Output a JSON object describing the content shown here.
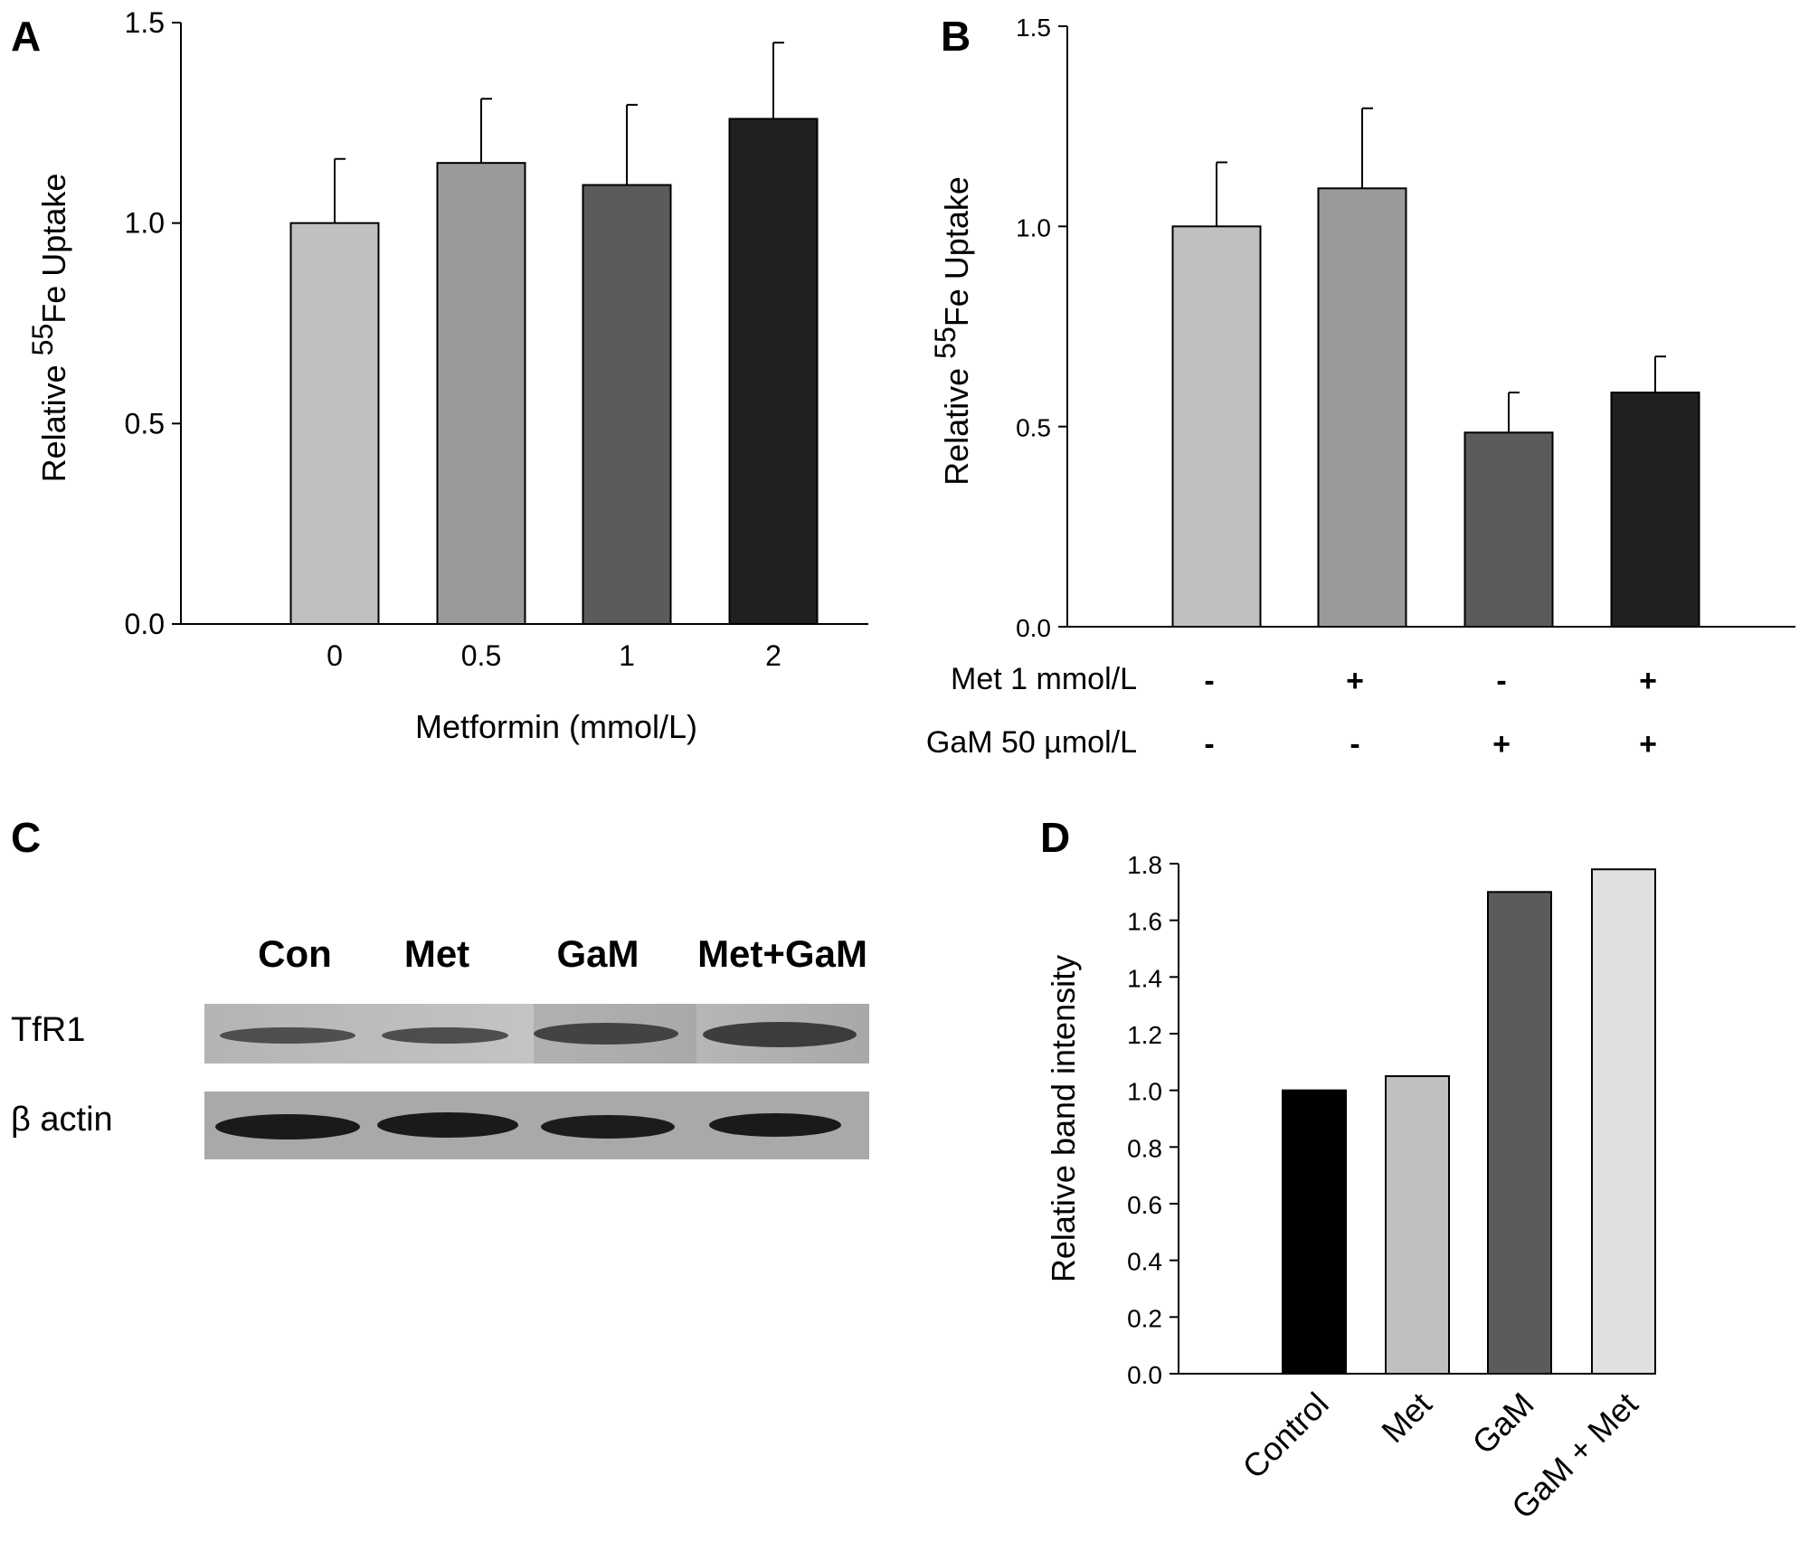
{
  "panels": {
    "A": "A",
    "B": "B",
    "C": "C",
    "D": "D"
  },
  "chart_data": [
    {
      "id": "A",
      "type": "bar",
      "categories": [
        "0",
        "0.5",
        "1",
        "2"
      ],
      "values": [
        1.0,
        1.15,
        1.095,
        1.26
      ],
      "errors": [
        0.16,
        0.16,
        0.2,
        0.19
      ],
      "bar_colors": [
        "#c0c0c0",
        "#9a9a9a",
        "#5b5b5b",
        "#202020"
      ],
      "ylabel_prefix": "Relative ",
      "ylabel_sup": "55",
      "ylabel_suffix": "Fe Uptake",
      "xlabel": "Metformin (mmol/L)",
      "ylim": [
        0,
        1.5
      ],
      "yticks": [
        "0.0",
        "0.5",
        "1.0",
        "1.5"
      ]
    },
    {
      "id": "B",
      "type": "bar",
      "categories": [
        "",
        "",
        "",
        ""
      ],
      "values": [
        1.0,
        1.095,
        0.485,
        0.585
      ],
      "errors": [
        0.16,
        0.2,
        0.1,
        0.09
      ],
      "bar_colors": [
        "#c0c0c0",
        "#9a9a9a",
        "#5b5b5b",
        "#202020"
      ],
      "ylabel_prefix": "Relative ",
      "ylabel_sup": "55",
      "ylabel_suffix": "Fe Uptake",
      "ylim": [
        0,
        1.5
      ],
      "yticks": [
        "0.0",
        "0.5",
        "1.0",
        "1.5"
      ],
      "condition_rows": [
        {
          "label": "Met 1 mmol/L",
          "signs": [
            "-",
            "+",
            "-",
            "+"
          ]
        },
        {
          "label": "GaM 50  µmol/L",
          "signs": [
            "-",
            "-",
            "+",
            "+"
          ]
        }
      ]
    },
    {
      "id": "D",
      "type": "bar",
      "categories": [
        "Control",
        "Met",
        "GaM",
        "GaM + Met"
      ],
      "values": [
        1.0,
        1.05,
        1.7,
        1.78
      ],
      "bar_colors": [
        "#000000",
        "#c0c0c0",
        "#5b5b5b",
        "#e0e0e0"
      ],
      "ylabel": "Relative band intensity",
      "ylim": [
        0,
        1.8
      ],
      "yticks": [
        "0.0",
        "0.2",
        "0.4",
        "0.6",
        "0.8",
        "1.0",
        "1.2",
        "1.4",
        "1.6",
        "1.8"
      ]
    }
  ],
  "blot": {
    "lanes": [
      "Con",
      "Met",
      "GaM",
      "Met+GaM"
    ],
    "rows": [
      {
        "protein": "TfR1"
      },
      {
        "protein": "β actin"
      }
    ]
  }
}
